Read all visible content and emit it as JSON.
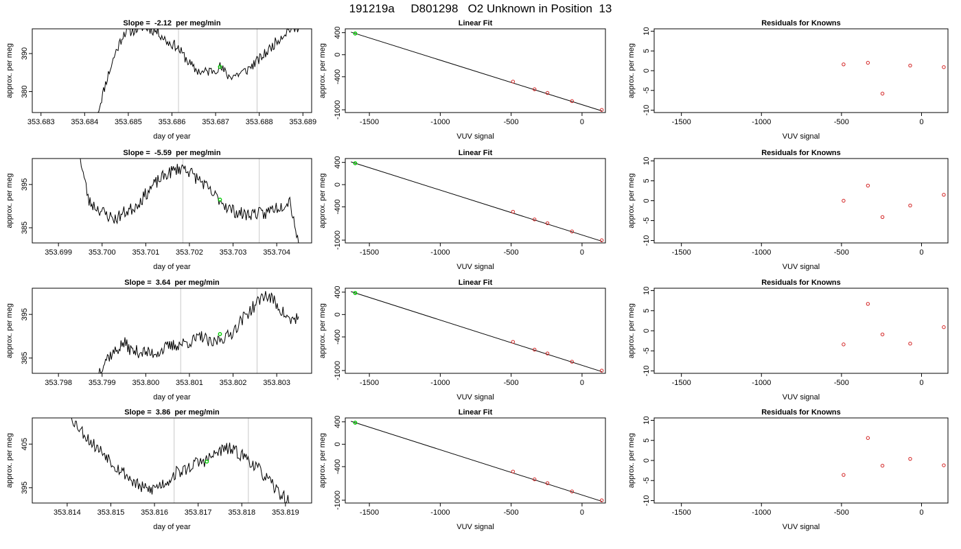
{
  "page_title": "191219a     D801298   O2 Unknown in Position  13",
  "colors": {
    "trace": "#000000",
    "green_point": "#00cc00",
    "red_point": "#d22020",
    "vline": "#c8c8c8"
  },
  "chart_data": [
    {
      "type": "line",
      "panel": "trace",
      "row": 0,
      "title": "Slope =  -2.12  per meg/min",
      "xlabel": "day of year",
      "ylabel": "approx. per meg",
      "xticks": [
        "353.683",
        "353.684",
        "353.685",
        "353.686",
        "353.687",
        "353.688",
        "353.689"
      ],
      "xtick_values": [
        353.683,
        353.684,
        353.685,
        353.686,
        353.687,
        353.688,
        353.689
      ],
      "yticks": [
        "380",
        "390"
      ],
      "ytick_values": [
        380,
        390
      ],
      "xlim": [
        353.6828,
        353.6892
      ],
      "ylim": [
        374.5,
        396.5
      ],
      "vlines": [
        353.68615,
        353.68795
      ],
      "green_point": {
        "x": 353.6871,
        "y": 386.5
      },
      "noise": 1.4,
      "seed": 11,
      "x": [
        353.6843,
        353.6845,
        353.6847,
        353.6849,
        353.6851,
        353.6853,
        353.6855,
        353.6857,
        353.6859,
        353.6861,
        353.6863,
        353.6865,
        353.6867,
        353.6869,
        353.6871,
        353.6873,
        353.6875,
        353.6877,
        353.6879,
        353.6881,
        353.6883,
        353.6885,
        353.6887,
        353.6889
      ],
      "y": [
        374.5,
        383.0,
        390.0,
        395.5,
        396.0,
        397.0,
        396.5,
        395.5,
        393.0,
        392.0,
        389.0,
        386.0,
        385.0,
        385.5,
        386.5,
        384.0,
        384.5,
        385.5,
        387.5,
        389.5,
        392.0,
        394.5,
        396.5,
        396.5
      ]
    },
    {
      "type": "scatter",
      "panel": "fit",
      "row": 0,
      "title": "Linear Fit",
      "xlabel": "VUV signal",
      "ylabel": "approx. per meg",
      "xticks": [
        "-1500",
        "-1000",
        "-500",
        "0"
      ],
      "xtick_values": [
        -1500,
        -1000,
        -500,
        0
      ],
      "yticks": [
        "400",
        "0",
        "-400",
        "-1000"
      ],
      "ytick_values": [
        400,
        0,
        -400,
        -1000
      ],
      "xlim": [
        -1670,
        165
      ],
      "ylim": [
        -1050,
        470
      ],
      "fit_line": {
        "x": [
          -1630,
          140
        ],
        "y": [
          410,
          -1020
        ]
      },
      "green_point": {
        "x": -1600,
        "y": 385
      },
      "points": {
        "x": [
          -487,
          -335,
          -244,
          -71,
          139
        ],
        "y": [
          -488,
          -627,
          -695,
          -843,
          -1002
        ]
      }
    },
    {
      "type": "scatter",
      "panel": "residuals",
      "row": 0,
      "title": "Residuals for Knowns",
      "xlabel": "VUV signal",
      "ylabel": "approx. per meg",
      "xticks": [
        "-1500",
        "-1000",
        "-500",
        "0"
      ],
      "xtick_values": [
        -1500,
        -1000,
        -500,
        0
      ],
      "yticks": [
        "-10",
        "-5",
        "0",
        "5",
        "10"
      ],
      "ytick_values": [
        -10,
        -5,
        0,
        5,
        10
      ],
      "xlim": [
        -1670,
        165
      ],
      "ylim": [
        -10.6,
        10.6
      ],
      "points": {
        "x": [
          -487,
          -335,
          -244,
          -71,
          139
        ],
        "y": [
          1.6,
          2.0,
          -5.8,
          1.3,
          0.9
        ]
      }
    },
    {
      "type": "line",
      "panel": "trace",
      "row": 1,
      "title": "Slope =  -5.59  per meg/min",
      "xlabel": "day of year",
      "ylabel": "approx. per meg",
      "xticks": [
        "353.699",
        "353.700",
        "353.701",
        "353.702",
        "353.703",
        "353.704"
      ],
      "xtick_values": [
        353.699,
        353.7,
        353.701,
        353.702,
        353.703,
        353.704
      ],
      "yticks": [
        "385",
        "395"
      ],
      "ytick_values": [
        385,
        395
      ],
      "xlim": [
        353.6984,
        353.7048
      ],
      "ylim": [
        381.5,
        401.0
      ],
      "vlines": [
        353.70185,
        353.7036
      ],
      "green_point": {
        "x": 353.7027,
        "y": 391.5
      },
      "noise": 1.5,
      "seed": 23,
      "x": [
        353.6995,
        353.6997,
        353.6999,
        353.7001,
        353.7003,
        353.7005,
        353.7007,
        353.7009,
        353.7011,
        353.7013,
        353.7015,
        353.7017,
        353.7019,
        353.7021,
        353.7023,
        353.7025,
        353.7027,
        353.7029,
        353.7031,
        353.7033,
        353.7035,
        353.7037,
        353.7039,
        353.7041,
        353.7043,
        353.7045
      ],
      "y": [
        401.0,
        391.0,
        389.5,
        388.0,
        387.0,
        388.5,
        389.5,
        391.5,
        394.0,
        396.0,
        397.5,
        398.5,
        399.0,
        397.0,
        395.5,
        393.0,
        391.5,
        389.5,
        388.5,
        388.0,
        388.5,
        388.0,
        389.5,
        390.0,
        391.5,
        381.5
      ]
    },
    {
      "type": "scatter",
      "panel": "fit",
      "row": 1,
      "title": "Linear Fit",
      "xlabel": "VUV signal",
      "ylabel": "approx. per meg",
      "xticks": [
        "-1500",
        "-1000",
        "-500",
        "0"
      ],
      "xtick_values": [
        -1500,
        -1000,
        -500,
        0
      ],
      "yticks": [
        "400",
        "0",
        "-400",
        "-1000"
      ],
      "ytick_values": [
        400,
        0,
        -400,
        -1000
      ],
      "xlim": [
        -1670,
        165
      ],
      "ylim": [
        -1050,
        470
      ],
      "fit_line": {
        "x": [
          -1630,
          140
        ],
        "y": [
          410,
          -1020
        ]
      },
      "green_point": {
        "x": -1600,
        "y": 385
      },
      "points": {
        "x": [
          -487,
          -335,
          -244,
          -71,
          139
        ],
        "y": [
          -488,
          -627,
          -695,
          -843,
          -1002
        ]
      }
    },
    {
      "type": "scatter",
      "panel": "residuals",
      "row": 1,
      "title": "Residuals for Knowns",
      "xlabel": "VUV signal",
      "ylabel": "approx. per meg",
      "xticks": [
        "-1500",
        "-1000",
        "-500",
        "0"
      ],
      "xtick_values": [
        -1500,
        -1000,
        -500,
        0
      ],
      "yticks": [
        "-10",
        "-5",
        "0",
        "5",
        "10"
      ],
      "ytick_values": [
        -10,
        -5,
        0,
        5,
        10
      ],
      "xlim": [
        -1670,
        165
      ],
      "ylim": [
        -10.6,
        10.6
      ],
      "points": {
        "x": [
          -487,
          -335,
          -244,
          -71,
          139
        ],
        "y": [
          0.0,
          3.8,
          -4.1,
          -1.2,
          1.5
        ]
      }
    },
    {
      "type": "line",
      "panel": "trace",
      "row": 2,
      "title": "Slope =  3.64  per meg/min",
      "xlabel": "day of year",
      "ylabel": "approx. per meg",
      "xticks": [
        "353.798",
        "353.799",
        "353.800",
        "353.801",
        "353.802",
        "353.803"
      ],
      "xtick_values": [
        353.798,
        353.799,
        353.8,
        353.801,
        353.802,
        353.803
      ],
      "yticks": [
        "385",
        "395"
      ],
      "ytick_values": [
        385,
        395
      ],
      "xlim": [
        353.7974,
        353.8038
      ],
      "ylim": [
        381.5,
        401.0
      ],
      "vlines": [
        353.8008,
        353.80255
      ],
      "green_point": {
        "x": 353.8017,
        "y": 390.5
      },
      "noise": 1.5,
      "seed": 37,
      "x": [
        353.7989,
        353.7991,
        353.7993,
        353.7995,
        353.7997,
        353.7999,
        353.8001,
        353.8003,
        353.8005,
        353.8007,
        353.8009,
        353.8011,
        353.8013,
        353.8015,
        353.8017,
        353.8019,
        353.8021,
        353.8023,
        353.8025,
        353.8027,
        353.8029,
        353.8031,
        353.8033,
        353.8035
      ],
      "y": [
        381.5,
        385.0,
        386.5,
        388.5,
        386.5,
        386.5,
        386.0,
        386.5,
        387.5,
        388.0,
        388.5,
        389.0,
        390.0,
        388.0,
        389.5,
        390.0,
        392.5,
        395.0,
        397.0,
        399.5,
        398.5,
        396.0,
        393.5,
        394.5
      ]
    },
    {
      "type": "scatter",
      "panel": "fit",
      "row": 2,
      "title": "Linear Fit",
      "xlabel": "VUV signal",
      "ylabel": "approx. per meg",
      "xticks": [
        "-1500",
        "-1000",
        "-500",
        "0"
      ],
      "xtick_values": [
        -1500,
        -1000,
        -500,
        0
      ],
      "yticks": [
        "400",
        "0",
        "-400",
        "-1000"
      ],
      "ytick_values": [
        400,
        0,
        -400,
        -1000
      ],
      "xlim": [
        -1670,
        165
      ],
      "ylim": [
        -1050,
        470
      ],
      "fit_line": {
        "x": [
          -1630,
          140
        ],
        "y": [
          410,
          -1020
        ]
      },
      "green_point": {
        "x": -1600,
        "y": 385
      },
      "points": {
        "x": [
          -487,
          -335,
          -244,
          -71,
          139
        ],
        "y": [
          -488,
          -627,
          -695,
          -843,
          -1002
        ]
      }
    },
    {
      "type": "scatter",
      "panel": "residuals",
      "row": 2,
      "title": "Residuals for Knowns",
      "xlabel": "VUV signal",
      "ylabel": "approx. per meg",
      "xticks": [
        "-1500",
        "-1000",
        "-500",
        "0"
      ],
      "xtick_values": [
        -1500,
        -1000,
        -500,
        0
      ],
      "yticks": [
        "-10",
        "-5",
        "0",
        "5",
        "10"
      ],
      "ytick_values": [
        -10,
        -5,
        0,
        5,
        10
      ],
      "xlim": [
        -1670,
        165
      ],
      "ylim": [
        -10.6,
        10.6
      ],
      "points": {
        "x": [
          -487,
          -335,
          -244,
          -71,
          139
        ],
        "y": [
          -3.4,
          6.7,
          -0.9,
          -3.2,
          0.9
        ]
      }
    },
    {
      "type": "line",
      "panel": "trace",
      "row": 3,
      "title": "Slope =  3.86  per meg/min",
      "xlabel": "day of year",
      "ylabel": "approx. per meg",
      "xticks": [
        "353.814",
        "353.815",
        "353.816",
        "353.817",
        "353.818",
        "353.819"
      ],
      "xtick_values": [
        353.814,
        353.815,
        353.816,
        353.817,
        353.818,
        353.819
      ],
      "yticks": [
        "395",
        "405"
      ],
      "ytick_values": [
        395,
        405
      ],
      "xlim": [
        353.8132,
        353.8196
      ],
      "ylim": [
        391.5,
        411.0
      ],
      "vlines": [
        353.81645,
        353.81815
      ],
      "green_point": {
        "x": 353.8172,
        "y": 401.0
      },
      "noise": 1.5,
      "seed": 53,
      "x": [
        353.8141,
        353.8143,
        353.8145,
        353.8147,
        353.8149,
        353.8151,
        353.8153,
        353.8155,
        353.8157,
        353.8159,
        353.8161,
        353.8163,
        353.8165,
        353.8167,
        353.8169,
        353.8171,
        353.8173,
        353.8175,
        353.8177,
        353.8179,
        353.8181,
        353.8183,
        353.8185,
        353.8187,
        353.8189,
        353.8191
      ],
      "y": [
        411.0,
        408.5,
        406.0,
        404.0,
        402.5,
        400.0,
        398.5,
        396.5,
        395.0,
        394.5,
        395.5,
        396.5,
        398.5,
        399.0,
        400.5,
        401.0,
        402.0,
        403.5,
        404.0,
        403.0,
        402.0,
        400.0,
        398.0,
        395.5,
        393.5,
        391.5
      ]
    },
    {
      "type": "scatter",
      "panel": "fit",
      "row": 3,
      "title": "Linear Fit",
      "xlabel": "VUV signal",
      "ylabel": "approx. per meg",
      "xticks": [
        "-1500",
        "-1000",
        "-500",
        "0"
      ],
      "xtick_values": [
        -1500,
        -1000,
        -500,
        0
      ],
      "yticks": [
        "400",
        "0",
        "-400",
        "-1000"
      ],
      "ytick_values": [
        400,
        0,
        -400,
        -1000
      ],
      "xlim": [
        -1670,
        165
      ],
      "ylim": [
        -1050,
        470
      ],
      "fit_line": {
        "x": [
          -1630,
          140
        ],
        "y": [
          410,
          -1020
        ]
      },
      "green_point": {
        "x": -1600,
        "y": 385
      },
      "points": {
        "x": [
          -487,
          -335,
          -244,
          -71,
          139
        ],
        "y": [
          -488,
          -627,
          -695,
          -843,
          -1002
        ]
      }
    },
    {
      "type": "scatter",
      "panel": "residuals",
      "row": 3,
      "title": "Residuals for Knowns",
      "xlabel": "VUV signal",
      "ylabel": "approx. per meg",
      "xticks": [
        "-1500",
        "-1000",
        "-500",
        "0"
      ],
      "xtick_values": [
        -1500,
        -1000,
        -500,
        0
      ],
      "yticks": [
        "-10",
        "-5",
        "0",
        "5",
        "10"
      ],
      "ytick_values": [
        -10,
        -5,
        0,
        5,
        10
      ],
      "xlim": [
        -1670,
        165
      ],
      "ylim": [
        -10.6,
        10.6
      ],
      "points": {
        "x": [
          -487,
          -335,
          -244,
          -71,
          139
        ],
        "y": [
          -3.6,
          5.6,
          -1.3,
          0.4,
          -1.2
        ]
      }
    }
  ]
}
